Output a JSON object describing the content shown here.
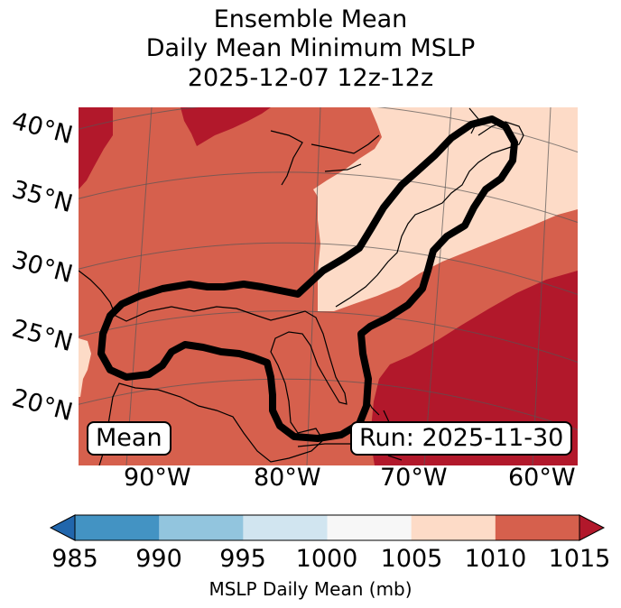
{
  "title": {
    "line1": "Ensemble Mean",
    "line2": "Daily Mean Minimum MSLP",
    "line3": "2025-12-07 12z-12z"
  },
  "map": {
    "lat_labels": [
      "40°N",
      "35°N",
      "30°N",
      "25°N",
      "20°N"
    ],
    "lon_labels": [
      "90°W",
      "80°W",
      "70°W",
      "60°W"
    ],
    "member_label": "Mean",
    "run_label": "Run: 2025-11-30",
    "fill_colors": {
      "1005-1010": "#fddbc7",
      "1010-1015": "#d6604d",
      "above-1015": "#b2182b"
    },
    "contour_color": "#000000"
  },
  "colorbar": {
    "label": "MSLP Daily Mean (mb)",
    "ticks": [
      "985",
      "990",
      "995",
      "1000",
      "1005",
      "1010",
      "1015"
    ],
    "colors": [
      "#4393c3",
      "#92c5de",
      "#d1e5f0",
      "#f7f7f7",
      "#fddbc7",
      "#d6604d"
    ],
    "under_color": "#2166ac",
    "over_color": "#b2182b"
  }
}
